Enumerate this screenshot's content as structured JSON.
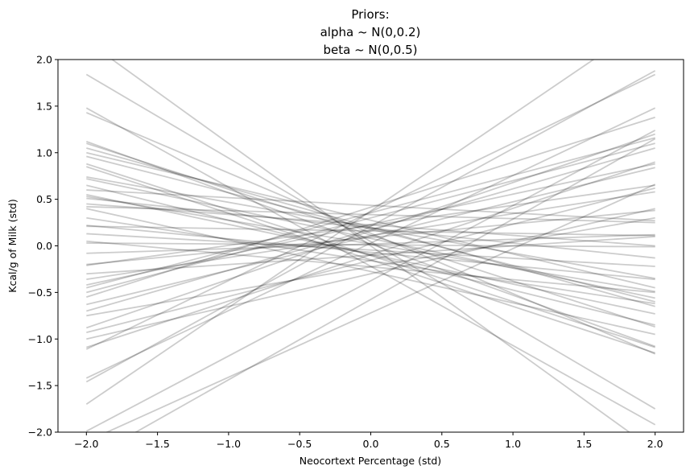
{
  "chart_data": {
    "type": "line",
    "title_lines": [
      "Priors:",
      "alpha ~ N(0,0.2)",
      "beta ~ N(0,0.5)"
    ],
    "xlabel": "Neocortext Percentage (std)",
    "ylabel": "Kcal/g of Milk (std)",
    "xlim": [
      -2.2,
      2.2
    ],
    "ylim": [
      -2.0,
      2.0
    ],
    "xticks": [
      -2.0,
      -1.5,
      -1.0,
      -0.5,
      0.0,
      0.5,
      1.0,
      1.5,
      2.0
    ],
    "xtick_labels": [
      "−2.0",
      "−1.5",
      "−1.0",
      "−0.5",
      "0.0",
      "0.5",
      "1.0",
      "1.5",
      "2.0"
    ],
    "yticks": [
      -2.0,
      -1.5,
      -1.0,
      -0.5,
      0.0,
      0.5,
      1.0,
      1.5,
      2.0
    ],
    "ytick_labels": [
      "−2.0",
      "−1.5",
      "−1.0",
      "−0.5",
      "0.0",
      "0.5",
      "1.0",
      "1.5",
      "2.0"
    ],
    "grid": false,
    "line_color": "#000000",
    "line_opacity": 0.2,
    "series": [
      {
        "x": [
          -2,
          2
        ],
        "y": [
          2.2,
          -2.2
        ]
      },
      {
        "x": [
          -2,
          2
        ],
        "y": [
          1.84,
          -1.75
        ]
      },
      {
        "x": [
          -2,
          2
        ],
        "y": [
          1.48,
          -1.92
        ]
      },
      {
        "x": [
          -2,
          2
        ],
        "y": [
          1.43,
          -1.16
        ]
      },
      {
        "x": [
          -2,
          2
        ],
        "y": [
          1.12,
          -1.08
        ]
      },
      {
        "x": [
          -2,
          2
        ],
        "y": [
          1.1,
          -0.87
        ]
      },
      {
        "x": [
          -2,
          2
        ],
        "y": [
          1.05,
          -0.65
        ]
      },
      {
        "x": [
          -2,
          2
        ],
        "y": [
          0.96,
          -0.6
        ]
      },
      {
        "x": [
          -2,
          2
        ],
        "y": [
          0.88,
          -1.09
        ]
      },
      {
        "x": [
          -2,
          2
        ],
        "y": [
          0.74,
          -0.35
        ]
      },
      {
        "x": [
          -2,
          2
        ],
        "y": [
          0.72,
          -0.56
        ]
      },
      {
        "x": [
          -2,
          2
        ],
        "y": [
          0.6,
          0.27
        ]
      },
      {
        "x": [
          -2,
          2
        ],
        "y": [
          0.55,
          -0.73
        ]
      },
      {
        "x": [
          -2,
          2
        ],
        "y": [
          0.53,
          -0.49
        ]
      },
      {
        "x": [
          -2,
          2
        ],
        "y": [
          0.51,
          -0.13
        ]
      },
      {
        "x": [
          -2,
          2
        ],
        "y": [
          0.42,
          0.25
        ]
      },
      {
        "x": [
          -2,
          2
        ],
        "y": [
          0.22,
          -0.36
        ]
      },
      {
        "x": [
          -2,
          2
        ],
        "y": [
          0.21,
          0.11
        ]
      },
      {
        "x": [
          -2,
          2
        ],
        "y": [
          0.13,
          -0.22
        ]
      },
      {
        "x": [
          -2,
          2
        ],
        "y": [
          0.03,
          -0.01
        ]
      },
      {
        "x": [
          -2,
          2
        ],
        "y": [
          -0.08,
          0.12
        ]
      },
      {
        "x": [
          -2,
          2
        ],
        "y": [
          -0.2,
          0.38
        ]
      },
      {
        "x": [
          -2,
          2
        ],
        "y": [
          -0.21,
          0.65
        ]
      },
      {
        "x": [
          -2,
          2
        ],
        "y": [
          -0.36,
          0.58
        ]
      },
      {
        "x": [
          -2,
          2
        ],
        "y": [
          -0.42,
          0.88
        ]
      },
      {
        "x": [
          -2,
          2
        ],
        "y": [
          -0.45,
          1.16
        ]
      },
      {
        "x": [
          -2,
          2
        ],
        "y": [
          -0.55,
          1.38
        ]
      },
      {
        "x": [
          -2,
          2
        ],
        "y": [
          -0.63,
          0.84
        ]
      },
      {
        "x": [
          -2,
          2
        ],
        "y": [
          -0.7,
          1.05
        ]
      },
      {
        "x": [
          -2,
          2
        ],
        "y": [
          -0.88,
          1.2
        ]
      },
      {
        "x": [
          -2,
          2
        ],
        "y": [
          -0.93,
          0.62
        ]
      },
      {
        "x": [
          -2,
          2
        ],
        "y": [
          -1.09,
          0.9
        ]
      },
      {
        "x": [
          -2,
          2
        ],
        "y": [
          -1.11,
          1.84
        ]
      },
      {
        "x": [
          -2,
          2
        ],
        "y": [
          -1.42,
          1.48
        ]
      },
      {
        "x": [
          -2,
          2
        ],
        "y": [
          -1.46,
          1.88
        ]
      },
      {
        "x": [
          -2,
          2
        ],
        "y": [
          -1.7,
          2.45
        ]
      },
      {
        "x": [
          -2,
          2
        ],
        "y": [
          -1.99,
          1.24
        ]
      },
      {
        "x": [
          -2,
          2
        ],
        "y": [
          -2.3,
          1.15
        ]
      },
      {
        "x": [
          -2,
          2
        ],
        "y": [
          -2.1,
          0.66
        ]
      },
      {
        "x": [
          -2,
          2
        ],
        "y": [
          -1.0,
          0.4
        ]
      },
      {
        "x": [
          -2,
          2
        ],
        "y": [
          0.3,
          -0.62
        ]
      },
      {
        "x": [
          -2,
          2
        ],
        "y": [
          0.65,
          -0.85
        ]
      },
      {
        "x": [
          -2,
          2
        ],
        "y": [
          0.85,
          -1.15
        ]
      },
      {
        "x": [
          -2,
          2
        ],
        "y": [
          -0.3,
          0.1
        ]
      },
      {
        "x": [
          -2,
          2
        ],
        "y": [
          0.45,
          0.0
        ]
      },
      {
        "x": [
          -2,
          2
        ],
        "y": [
          -0.75,
          0.3
        ]
      },
      {
        "x": [
          -2,
          2
        ],
        "y": [
          1.0,
          -0.45
        ]
      },
      {
        "x": [
          -2,
          2
        ],
        "y": [
          0.4,
          -0.95
        ]
      },
      {
        "x": [
          -2,
          2
        ],
        "y": [
          -0.5,
          1.1
        ]
      },
      {
        "x": [
          -2,
          2
        ],
        "y": [
          0.05,
          -0.5
        ]
      }
    ]
  }
}
